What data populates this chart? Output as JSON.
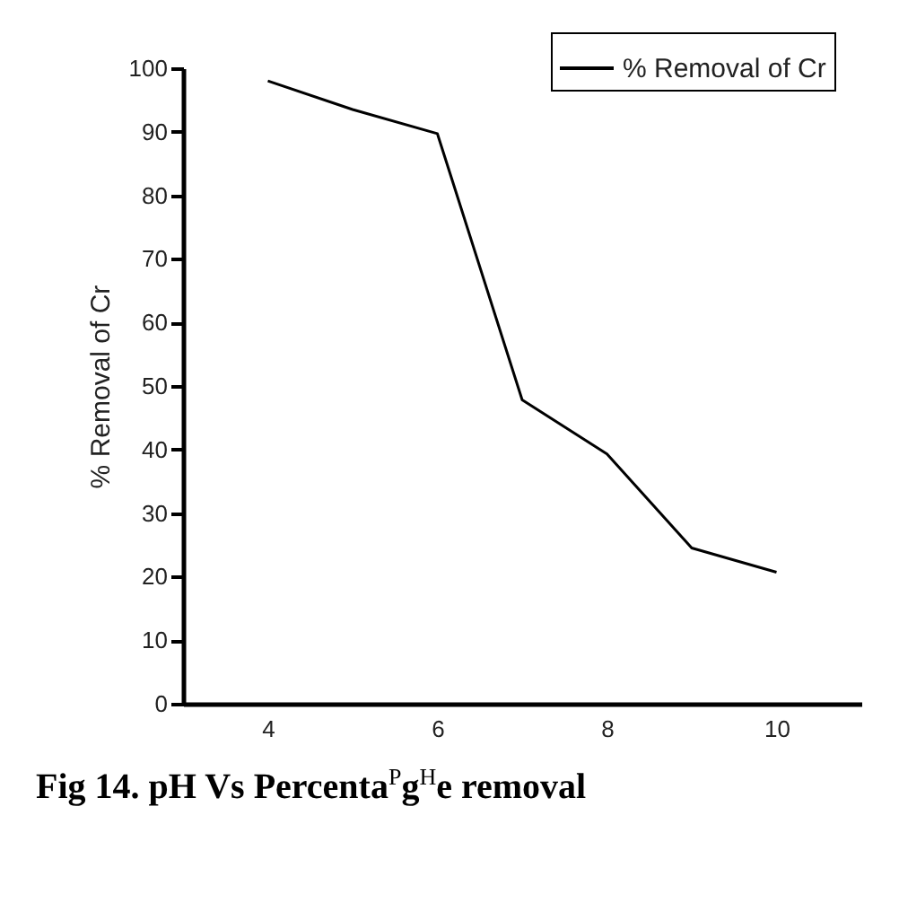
{
  "chart_data": {
    "type": "line",
    "title": "Fig 14. pH Vs Percenta$^{P}$g$^{H}$e removal",
    "ylabel": "% Removal of Cr",
    "x": [
      4,
      5,
      6,
      7,
      8,
      9,
      10
    ],
    "series": [
      {
        "name": "% Removal of Cr",
        "color": "#000000",
        "values": [
          98,
          93.5,
          89.7,
          47.8,
          39.3,
          24.5,
          20.7
        ]
      }
    ],
    "xlim": [
      3,
      11
    ],
    "xticks": [
      4,
      6,
      8,
      10
    ],
    "ylim": [
      0,
      100
    ],
    "yticks": [
      0,
      10,
      20,
      30,
      40,
      50,
      60,
      70,
      80,
      90,
      100
    ],
    "legend": "top right",
    "grid": false,
    "marker": "none",
    "line_style": "solid"
  }
}
